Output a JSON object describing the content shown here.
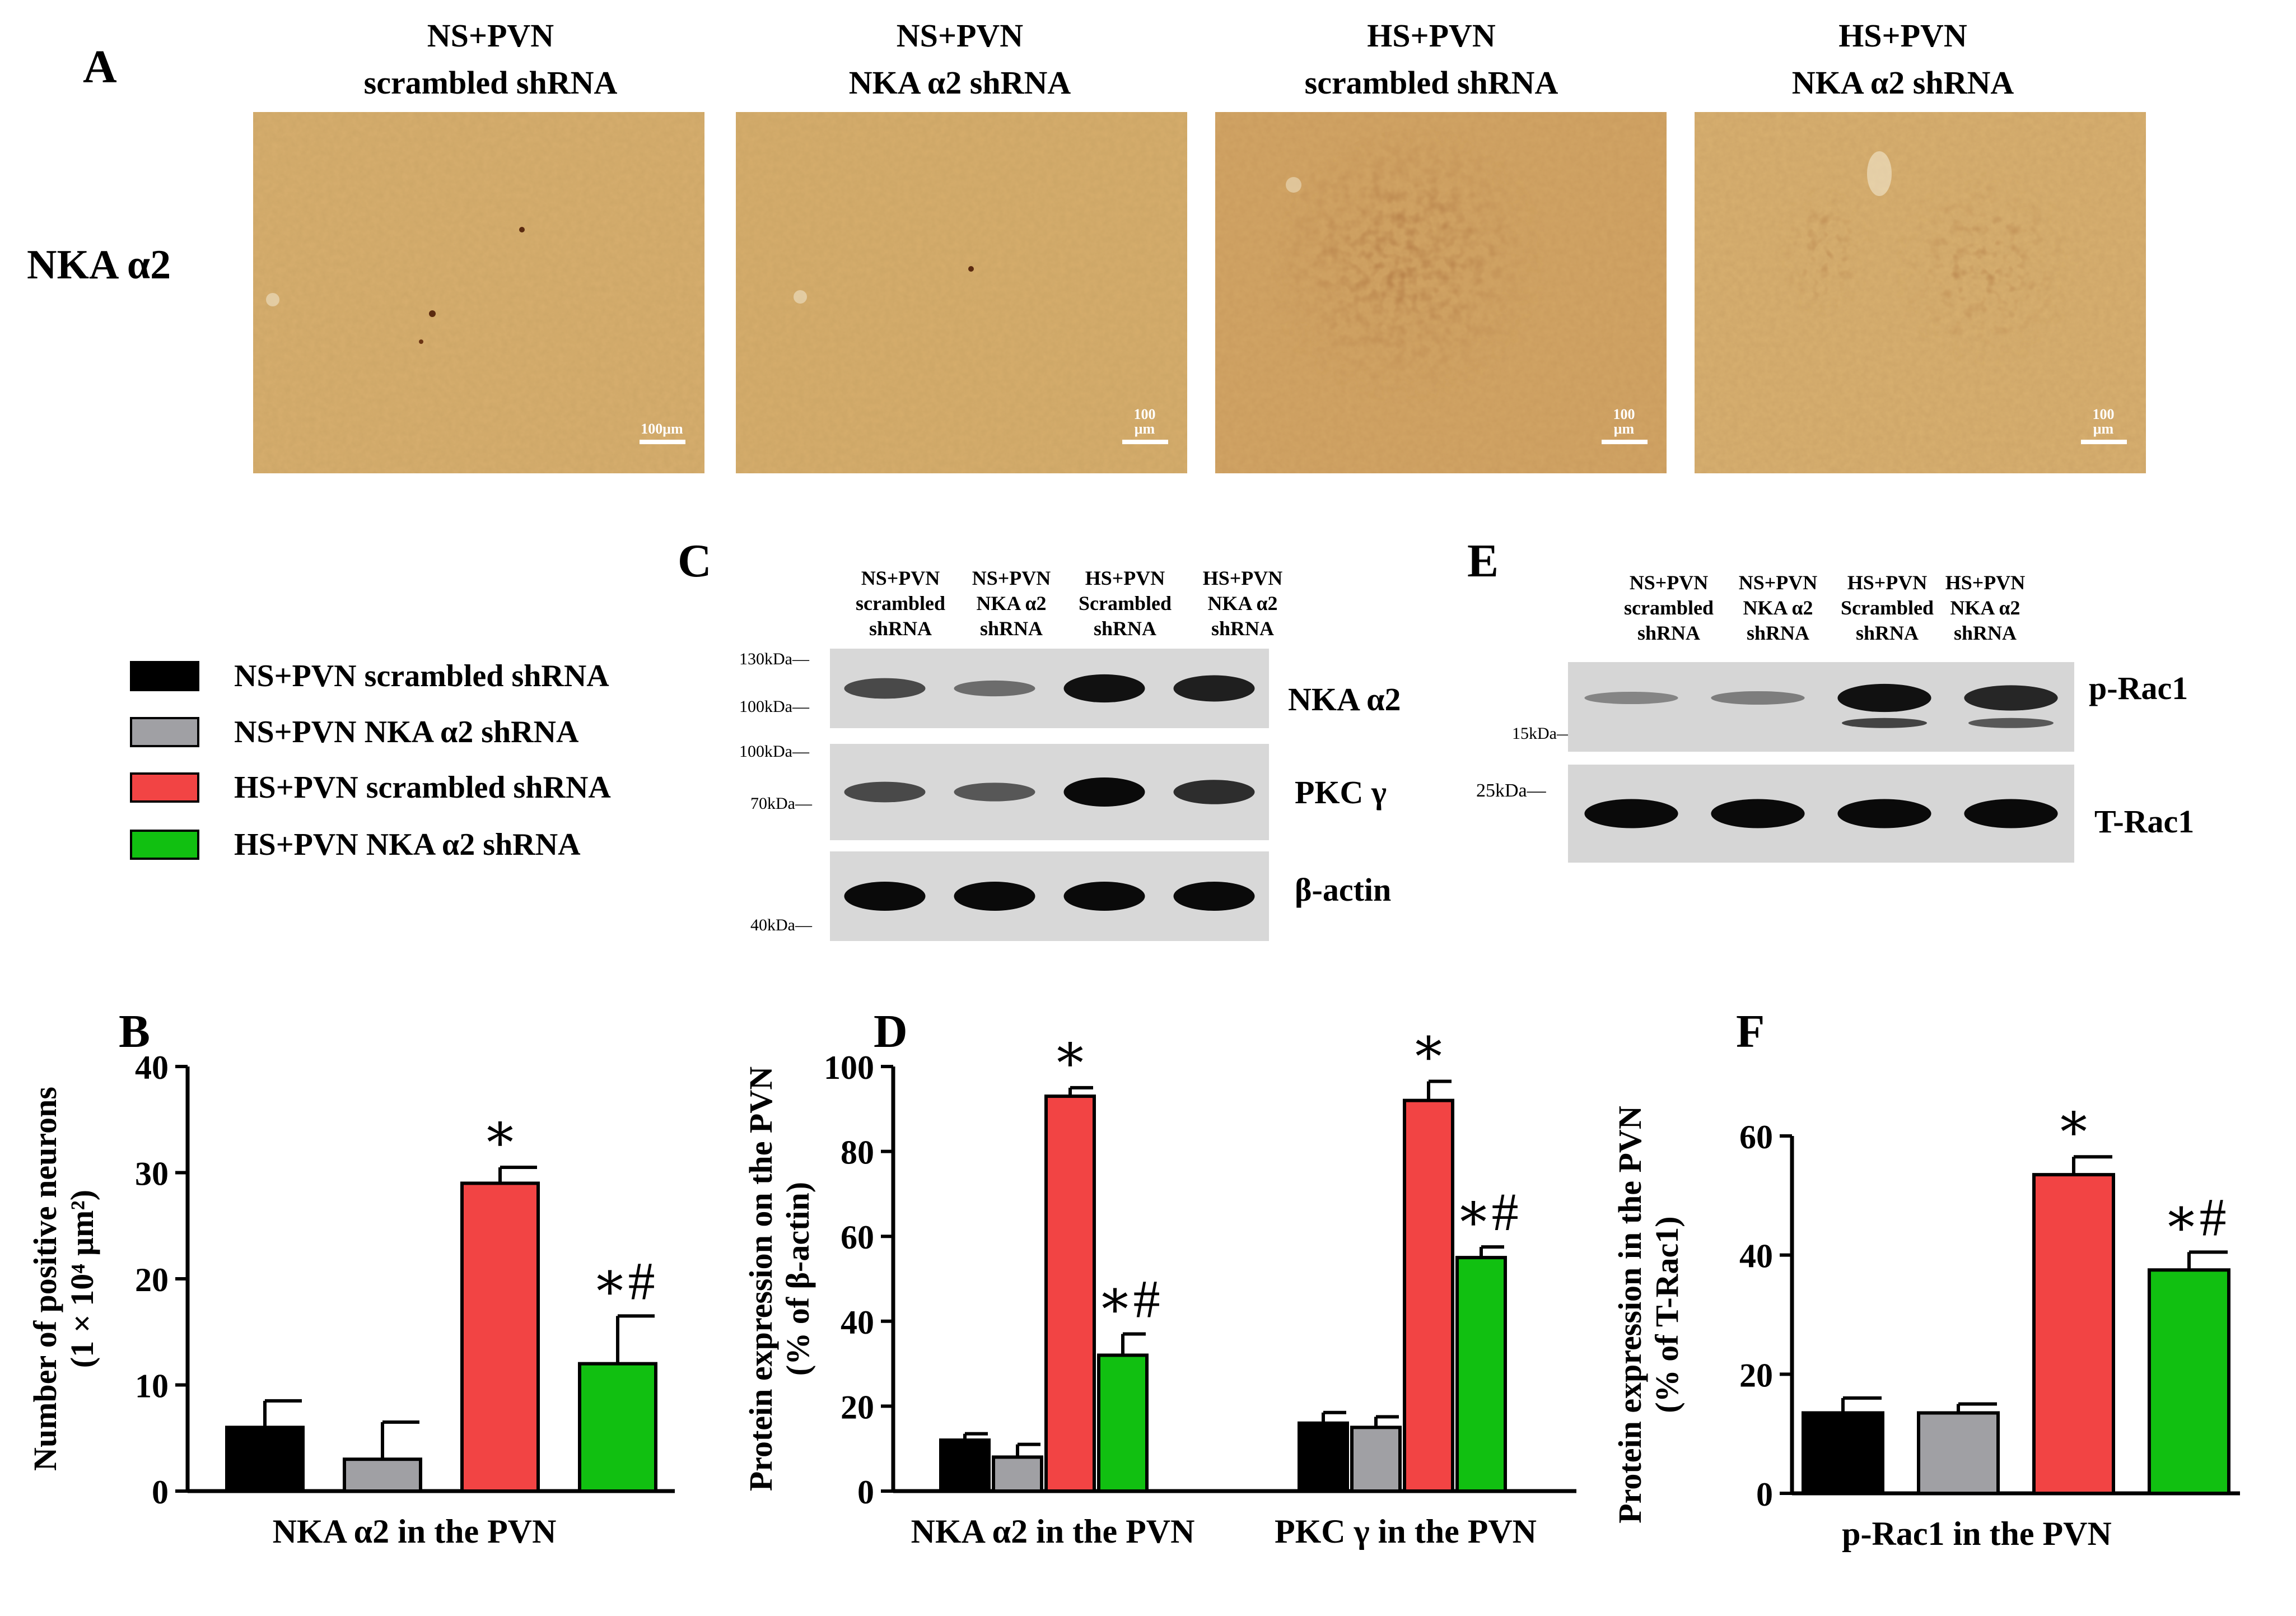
{
  "panels": {
    "A": "A",
    "B": "B",
    "C": "C",
    "D": "D",
    "E": "E",
    "F": "F"
  },
  "micrographs": {
    "row_label": "NKA α2",
    "columns": [
      {
        "line1": "NS+PVN",
        "line2": "scrambled shRNA",
        "scale": "100μm"
      },
      {
        "line1": "NS+PVN",
        "line2": "NKA α2 shRNA",
        "scale": "100 μm"
      },
      {
        "line1": "HS+PVN",
        "line2": "scrambled shRNA",
        "scale": "100 μm"
      },
      {
        "line1": "HS+PVN",
        "line2": "NKA α2 shRNA",
        "scale": "100 μm"
      }
    ]
  },
  "legend": [
    {
      "label": "NS+PVN scrambled shRNA",
      "color": "#000000"
    },
    {
      "label": "NS+PVN NKA α2 shRNA",
      "color": "#a0a0a4"
    },
    {
      "label": "HS+PVN scrambled shRNA",
      "color": "#f24444"
    },
    {
      "label": "HS+PVN NKA α2 shRNA",
      "color": "#11c011"
    }
  ],
  "blot_C": {
    "lanes": [
      [
        "NS+PVN",
        "scrambled",
        "shRNA"
      ],
      [
        "NS+PVN",
        "NKA α2",
        "shRNA"
      ],
      [
        "HS+PVN",
        "Scrambled",
        "shRNA"
      ],
      [
        "HS+PVN",
        "NKA α2",
        "shRNA"
      ]
    ],
    "markers": {
      "m130": "130kDa—",
      "m100a": "100kDa—",
      "m100b": "100kDa—",
      "m70": "70kDa—",
      "m40": "40kDa—"
    },
    "rows": [
      {
        "label": "NKA α2",
        "intensity": [
          0.55,
          0.3,
          0.95,
          0.85
        ]
      },
      {
        "label": "PKC γ",
        "intensity": [
          0.55,
          0.45,
          1.0,
          0.75
        ]
      },
      {
        "label": "β-actin",
        "intensity": [
          1.0,
          1.0,
          1.0,
          1.0
        ]
      }
    ]
  },
  "blot_E": {
    "lanes": [
      [
        "NS+PVN",
        "scrambled",
        "shRNA"
      ],
      [
        "NS+PVN",
        "NKA α2",
        "shRNA"
      ],
      [
        "HS+PVN",
        "Scrambled",
        "shRNA"
      ],
      [
        "HS+PVN",
        "NKA α2",
        "shRNA"
      ]
    ],
    "markers": {
      "m15": "15kDa—",
      "m25": "25kDa—"
    },
    "rows": [
      {
        "label": "p-Rac1",
        "intensity": [
          0.12,
          0.18,
          0.95,
          0.8
        ]
      },
      {
        "label": "T-Rac1",
        "intensity": [
          1.0,
          1.0,
          1.0,
          1.0
        ]
      }
    ]
  },
  "chart_data": [
    {
      "panel": "B",
      "type": "bar",
      "categories": [
        "NKA α2  in the PVN"
      ],
      "xlabel": "NKA α2  in the PVN",
      "ylabel": "Number of positive neurons",
      "ylabel2": "(1 × 10⁴ μm²)",
      "ylim": [
        0,
        40
      ],
      "yticks": [
        0,
        10,
        20,
        30,
        40
      ],
      "series": [
        {
          "name": "NS+PVN scrambled shRNA",
          "values": [
            6
          ],
          "error": [
            2.5
          ],
          "annotation": ""
        },
        {
          "name": "NS+PVN NKA α2 shRNA",
          "values": [
            3
          ],
          "error": [
            3.5
          ],
          "annotation": ""
        },
        {
          "name": "HS+PVN scrambled shRNA",
          "values": [
            29
          ],
          "error": [
            1.5
          ],
          "annotation": "*"
        },
        {
          "name": "HS+PVN NKA α2 shRNA",
          "values": [
            12
          ],
          "error": [
            4.5
          ],
          "annotation": "*#"
        }
      ]
    },
    {
      "panel": "D",
      "type": "bar",
      "categories": [
        "NKA α2  in the PVN",
        "PKC γ  in the PVN"
      ],
      "ylabel": "Protein expression on the PVN",
      "ylabel2": "(%  of  β-actin)",
      "ylim": [
        0,
        100
      ],
      "yticks": [
        0,
        20,
        40,
        60,
        80,
        100
      ],
      "series": [
        {
          "name": "NS+PVN scrambled shRNA",
          "values": [
            12,
            16
          ],
          "error": [
            1.5,
            2.5
          ],
          "annotation": [
            "",
            ""
          ]
        },
        {
          "name": "NS+PVN NKA α2 shRNA",
          "values": [
            8,
            15
          ],
          "error": [
            3,
            2.5
          ],
          "annotation": [
            "",
            ""
          ]
        },
        {
          "name": "HS+PVN scrambled shRNA",
          "values": [
            93,
            92
          ],
          "error": [
            2,
            4.5
          ],
          "annotation": [
            "*",
            "*"
          ]
        },
        {
          "name": "HS+PVN NKA α2 shRNA",
          "values": [
            32,
            55
          ],
          "error": [
            5,
            2.5
          ],
          "annotation": [
            "*#",
            "*#"
          ]
        }
      ]
    },
    {
      "panel": "F",
      "type": "bar",
      "categories": [
        "p-Rac1 in the PVN"
      ],
      "xlabel": "p-Rac1 in the PVN",
      "ylabel": "Protein expression in the PVN",
      "ylabel2": "(%  of  T-Rac1)",
      "ylim": [
        0,
        60
      ],
      "yticks": [
        0,
        20,
        40,
        60
      ],
      "series": [
        {
          "name": "NS+PVN scrambled shRNA",
          "values": [
            13.5
          ],
          "error": [
            2.5
          ],
          "annotation": ""
        },
        {
          "name": "NS+PVN NKA α2 shRNA",
          "values": [
            13.5
          ],
          "error": [
            1.5
          ],
          "annotation": ""
        },
        {
          "name": "HS+PVN scrambled shRNA",
          "values": [
            53.5
          ],
          "error": [
            3
          ],
          "annotation": "*"
        },
        {
          "name": "HS+PVN NKA α2 shRNA",
          "values": [
            37.5
          ],
          "error": [
            3
          ],
          "annotation": "*#"
        }
      ]
    }
  ]
}
